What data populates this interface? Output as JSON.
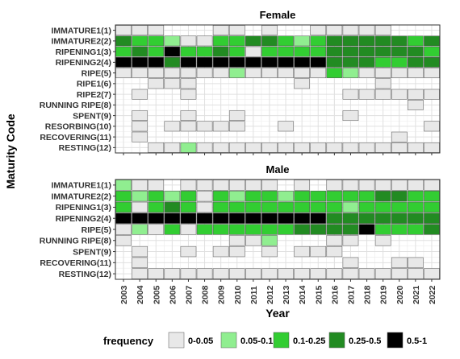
{
  "chart_data": {
    "type": "heatmap",
    "xlabel": "Year",
    "ylabel": "Maturity Code",
    "x": [
      "2003",
      "2004",
      "2005",
      "2006",
      "2007",
      "2008",
      "2009",
      "2010",
      "2011",
      "2012",
      "2013",
      "2014",
      "2015",
      "2016",
      "2017",
      "2018",
      "2019",
      "2020",
      "2021",
      "2022"
    ],
    "legend": {
      "title": "frequency",
      "position": "bottom",
      "bins": [
        {
          "label": "0-0.05",
          "color": "#e8e8e8"
        },
        {
          "label": "0.05-0.1",
          "color": "#90ee90"
        },
        {
          "label": "0.1-0.25",
          "color": "#32cd32"
        },
        {
          "label": "0.25-0.5",
          "color": "#228b22"
        },
        {
          "label": "0.5-1",
          "color": "#000000"
        }
      ]
    },
    "panels": [
      {
        "title": "Female",
        "categories": [
          "IMMATURE1(1)",
          "IMMATURE2(2)",
          "RIPENING1(3)",
          "RIPENING2(4)",
          "RIPE(5)",
          "RIPE1(6)",
          "RIPE2(7)",
          "RUNNING RIPE(8)",
          "SPENT(9)",
          "RESORBING(10)",
          "RECOVERING(11)",
          "RESTING(12)"
        ],
        "cells": [
          [
            0,
            0,
            0,
            -1,
            -1,
            -1,
            0,
            0,
            -1,
            0,
            -1,
            -1,
            0,
            0,
            0,
            0,
            0,
            -1,
            -1,
            -1
          ],
          [
            3,
            2,
            2,
            1,
            0,
            0,
            2,
            2,
            3,
            3,
            2,
            1,
            2,
            3,
            3,
            3,
            3,
            3,
            2,
            3
          ],
          [
            2,
            3,
            2,
            4,
            2,
            2,
            3,
            2,
            0,
            2,
            2,
            2,
            2,
            3,
            3,
            3,
            3,
            3,
            3,
            2
          ],
          [
            4,
            4,
            4,
            3,
            4,
            4,
            4,
            4,
            4,
            4,
            4,
            4,
            4,
            3,
            3,
            3,
            2,
            2,
            3,
            3
          ],
          [
            0,
            0,
            0,
            0,
            0,
            0,
            0,
            1,
            0,
            0,
            0,
            0,
            0,
            2,
            1,
            0,
            0,
            0,
            0,
            0
          ],
          [
            -1,
            -1,
            0,
            0,
            0,
            -1,
            -1,
            -1,
            -1,
            -1,
            -1,
            0,
            -1,
            -1,
            -1,
            -1,
            0,
            -1,
            -1,
            -1
          ],
          [
            -1,
            0,
            -1,
            -1,
            0,
            -1,
            -1,
            -1,
            -1,
            -1,
            -1,
            -1,
            -1,
            -1,
            0,
            0,
            0,
            0,
            0,
            0
          ],
          [
            -1,
            -1,
            -1,
            -1,
            -1,
            -1,
            -1,
            -1,
            -1,
            -1,
            -1,
            -1,
            -1,
            -1,
            -1,
            -1,
            -1,
            -1,
            0,
            -1
          ],
          [
            -1,
            0,
            -1,
            -1,
            0,
            -1,
            -1,
            0,
            -1,
            -1,
            -1,
            -1,
            -1,
            -1,
            0,
            -1,
            -1,
            -1,
            -1,
            -1
          ],
          [
            -1,
            0,
            -1,
            0,
            0,
            0,
            0,
            0,
            -1,
            -1,
            0,
            -1,
            -1,
            -1,
            -1,
            -1,
            -1,
            -1,
            -1,
            0
          ],
          [
            -1,
            0,
            -1,
            -1,
            -1,
            -1,
            -1,
            -1,
            -1,
            -1,
            -1,
            -1,
            -1,
            -1,
            -1,
            -1,
            -1,
            0,
            -1,
            -1
          ],
          [
            -1,
            -1,
            0,
            0,
            1,
            0,
            0,
            0,
            0,
            0,
            0,
            0,
            0,
            0,
            0,
            0,
            0,
            0,
            0,
            0
          ]
        ]
      },
      {
        "title": "Male",
        "categories": [
          "IMMATURE1(1)",
          "IMMATURE2(2)",
          "RIPENING1(3)",
          "RIPENING2(4)",
          "RIPE(5)",
          "RUNNING RIPE(8)",
          "SPENT(9)",
          "RECOVERING(11)",
          "RESTING(12)"
        ],
        "cells": [
          [
            1,
            0,
            0,
            -1,
            0,
            0,
            0,
            0,
            0,
            0,
            -1,
            0,
            -1,
            0,
            0,
            0,
            0,
            0,
            0,
            0
          ],
          [
            2,
            1,
            2,
            1,
            2,
            0,
            2,
            1,
            2,
            2,
            1,
            2,
            2,
            2,
            2,
            2,
            3,
            3,
            2,
            2
          ],
          [
            2,
            0,
            2,
            3,
            2,
            0,
            2,
            2,
            2,
            2,
            2,
            2,
            2,
            2,
            1,
            2,
            2,
            2,
            2,
            2
          ],
          [
            4,
            4,
            4,
            4,
            4,
            4,
            4,
            4,
            4,
            4,
            4,
            4,
            4,
            3,
            3,
            3,
            3,
            3,
            3,
            3
          ],
          [
            0,
            1,
            0,
            2,
            0,
            2,
            2,
            2,
            2,
            2,
            2,
            3,
            3,
            3,
            3,
            4,
            2,
            2,
            2,
            3
          ],
          [
            0,
            -1,
            -1,
            -1,
            -1,
            -1,
            -1,
            0,
            0,
            1,
            -1,
            -1,
            -1,
            0,
            0,
            -1,
            0,
            -1,
            -1,
            -1
          ],
          [
            -1,
            0,
            -1,
            -1,
            0,
            -1,
            0,
            0,
            -1,
            0,
            -1,
            0,
            0,
            0,
            -1,
            -1,
            -1,
            -1,
            -1,
            -1
          ],
          [
            -1,
            0,
            -1,
            -1,
            -1,
            -1,
            -1,
            -1,
            -1,
            -1,
            -1,
            -1,
            -1,
            -1,
            0,
            -1,
            -1,
            0,
            0,
            -1
          ],
          [
            -1,
            0,
            0,
            0,
            0,
            0,
            0,
            0,
            0,
            0,
            0,
            0,
            0,
            0,
            0,
            0,
            0,
            0,
            0,
            0
          ]
        ]
      }
    ]
  }
}
